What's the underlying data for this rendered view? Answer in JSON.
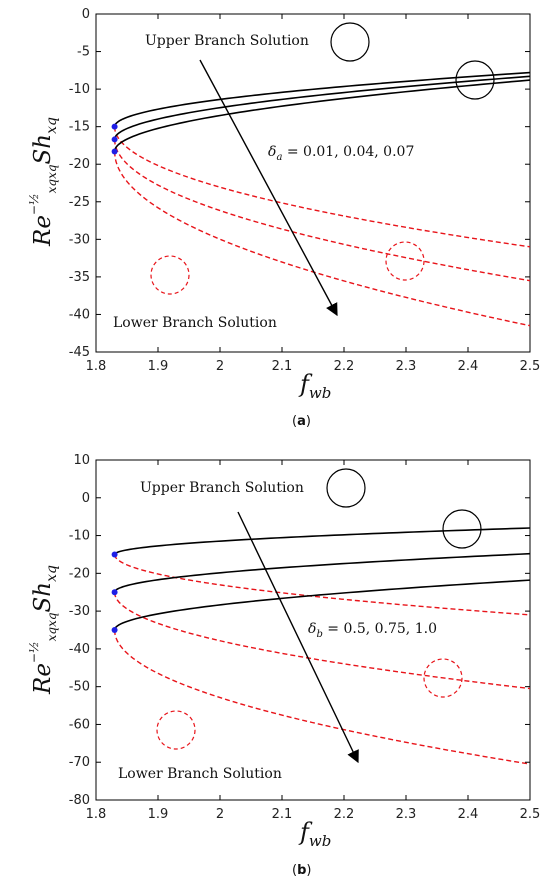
{
  "chart_data": [
    {
      "type": "line",
      "caption": "(a)",
      "caption_letter": "a",
      "xlabel_main": "f",
      "xlabel_sub": "wb",
      "ylabel_main": "Re",
      "ylabel_exp": "−½",
      "ylabel_sub": "xqxq",
      "ylabel_main2": "Sh",
      "ylabel_sub2": "xq",
      "xlim": [
        1.8,
        2.5
      ],
      "ylim": [
        -45,
        0
      ],
      "xticks": [
        "1.8",
        "1.9",
        "2",
        "2.1",
        "2.2",
        "2.3",
        "2.4",
        "2.5"
      ],
      "yticks": [
        "0",
        "-5",
        "-10",
        "-15",
        "-20",
        "-25",
        "-30",
        "-35",
        "-40",
        "-45"
      ],
      "annotations": {
        "upper": "Upper Branch Solution",
        "lower": "Lower Branch Solution",
        "param_sym": "δ",
        "param_sub": "a",
        "param_values": " = 0.01, 0.04, 0.07"
      },
      "turning_x": 1.83,
      "series": [
        {
          "branch": "upper",
          "turn_y": -15.0,
          "upper_end_y": -7.8,
          "lower_end_y": -31.0
        },
        {
          "branch": "middle",
          "turn_y": -16.7,
          "upper_end_y": -8.3,
          "lower_end_y": -35.5
        },
        {
          "branch": "lower",
          "turn_y": -18.3,
          "upper_end_y": -8.8,
          "lower_end_y": -41.5
        }
      ],
      "colors": {
        "upper": "#000000",
        "lower": "#e8141a",
        "turning": "#1f1fe6"
      }
    },
    {
      "type": "line",
      "caption": "(b)",
      "caption_letter": "b",
      "xlabel_main": "f",
      "xlabel_sub": "wb",
      "ylabel_main": "Re",
      "ylabel_exp": "−½",
      "ylabel_sub": "xqxq",
      "ylabel_main2": "Sh",
      "ylabel_sub2": "xq",
      "xlim": [
        1.8,
        2.5
      ],
      "ylim": [
        -80,
        10
      ],
      "xticks": [
        "1.8",
        "1.9",
        "2",
        "2.1",
        "2.2",
        "2.3",
        "2.4",
        "2.5"
      ],
      "yticks": [
        "10",
        "0",
        "-10",
        "-20",
        "-30",
        "-40",
        "-50",
        "-60",
        "-70",
        "-80"
      ],
      "annotations": {
        "upper": "Upper Branch Solution",
        "lower": "Lower Branch Solution",
        "param_sym": "δ",
        "param_sub": "b",
        "param_values": " = 0.5, 0.75, 1.0"
      },
      "turning_x": 1.83,
      "series": [
        {
          "branch": "upper",
          "turn_y": -15.0,
          "upper_end_y": -8.0,
          "lower_end_y": -31.0
        },
        {
          "branch": "middle",
          "turn_y": -25.0,
          "upper_end_y": -14.8,
          "lower_end_y": -50.5
        },
        {
          "branch": "lower",
          "turn_y": -35.0,
          "upper_end_y": -21.8,
          "lower_end_y": -70.5
        }
      ],
      "colors": {
        "upper": "#000000",
        "lower": "#e8141a",
        "turning": "#1f1fe6"
      }
    }
  ]
}
